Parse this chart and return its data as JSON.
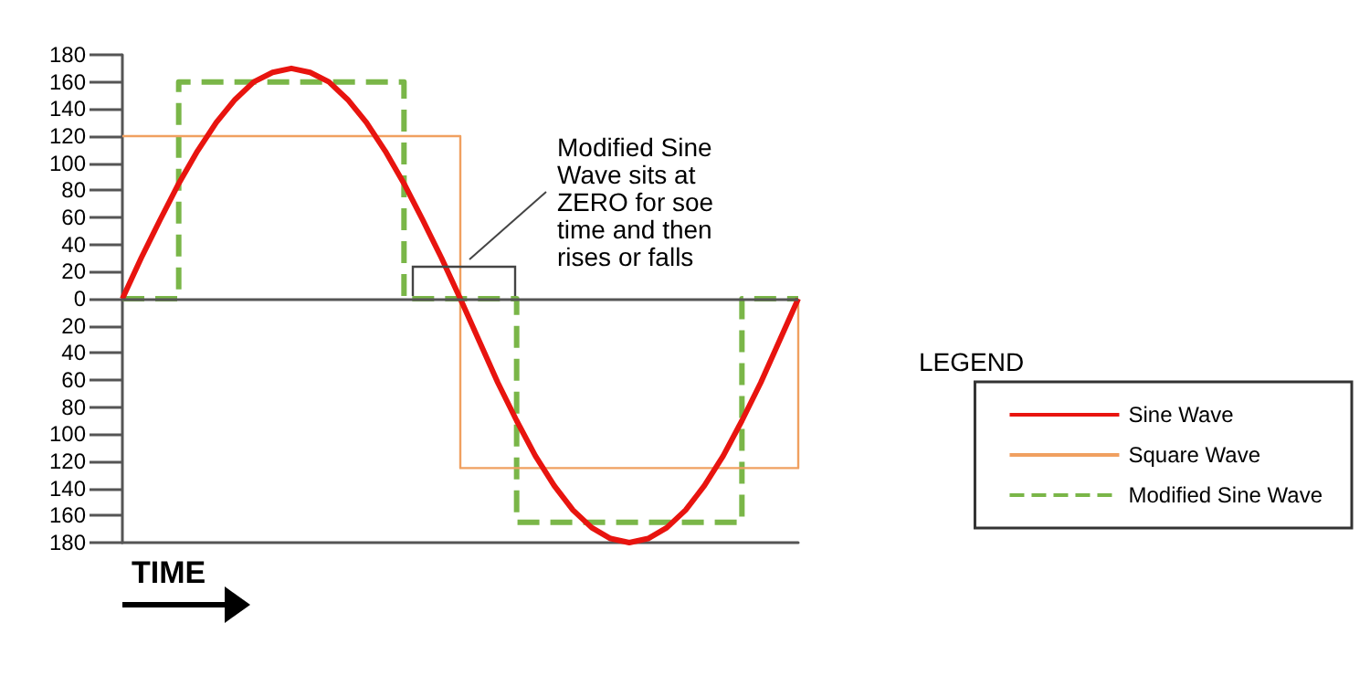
{
  "chart_data": {
    "type": "line",
    "xlabel": "TIME",
    "legend_title": "LEGEND",
    "legend": "right",
    "tick_labels": "y",
    "marker": "none",
    "ylim": [
      -180,
      180
    ],
    "categories": [
      null,
      null,
      null,
      null,
      null,
      null,
      null,
      null,
      null,
      null,
      null,
      null,
      null,
      null,
      null,
      null,
      null,
      null,
      null,
      null,
      null,
      null,
      null,
      null,
      null,
      null,
      null,
      null,
      null,
      null,
      null,
      null,
      null,
      null,
      null,
      null,
      null
    ],
    "yticks": [
      {
        "value": -180,
        "label": "180"
      },
      {
        "value": -160,
        "label": "160"
      },
      {
        "value": -140,
        "label": "140"
      },
      {
        "value": -120,
        "label": "120"
      },
      {
        "value": -100,
        "label": "100"
      },
      {
        "value": -80,
        "label": "80"
      },
      {
        "value": -60,
        "label": "60"
      },
      {
        "value": -40,
        "label": "40"
      },
      {
        "value": -20,
        "label": "20"
      },
      0,
      20,
      40,
      60,
      80,
      100,
      120,
      140,
      160,
      180
    ],
    "ref_lines": [
      {
        "axis": "y",
        "value": 0,
        "color": "#555555"
      }
    ],
    "annotations": [
      "Modified Sine Wave sits at ZERO for soe time and then rises or falls"
    ],
    "series": [
      {
        "name": "Sine Wave",
        "color": "#e8140f",
        "line_style": "solid",
        "values": [
          0,
          30,
          58,
          85,
          109,
          130,
          147,
          160,
          167,
          170,
          167,
          160,
          147,
          130,
          109,
          85,
          58,
          30,
          0,
          -31,
          -62,
          -90,
          -116,
          -138,
          -156,
          -169,
          -177,
          -180,
          -177,
          -169,
          -156,
          -138,
          -116,
          -90,
          -62,
          -31,
          0
        ]
      },
      {
        "name": "Square Wave",
        "type": "step",
        "color": "#f0a060",
        "line_style": "solid",
        "values": [
          120,
          120,
          120,
          120,
          120,
          120,
          120,
          120,
          120,
          120,
          120,
          120,
          120,
          120,
          120,
          120,
          120,
          120,
          -125,
          -125,
          -125,
          -125,
          -125,
          -125,
          -125,
          -125,
          -125,
          -125,
          -125,
          -125,
          -125,
          -125,
          -125,
          -125,
          -125,
          -125,
          0
        ]
      },
      {
        "name": "Modified Sine Wave",
        "type": "step",
        "color": "#7ab648",
        "line_style": "dashed",
        "values": [
          0,
          0,
          0,
          160,
          160,
          160,
          160,
          160,
          160,
          160,
          160,
          160,
          160,
          160,
          160,
          0,
          0,
          0,
          0,
          0,
          0,
          -165,
          -165,
          -165,
          -165,
          -165,
          -165,
          -165,
          -165,
          -165,
          -165,
          -165,
          -165,
          0,
          0,
          0,
          0
        ]
      }
    ]
  }
}
